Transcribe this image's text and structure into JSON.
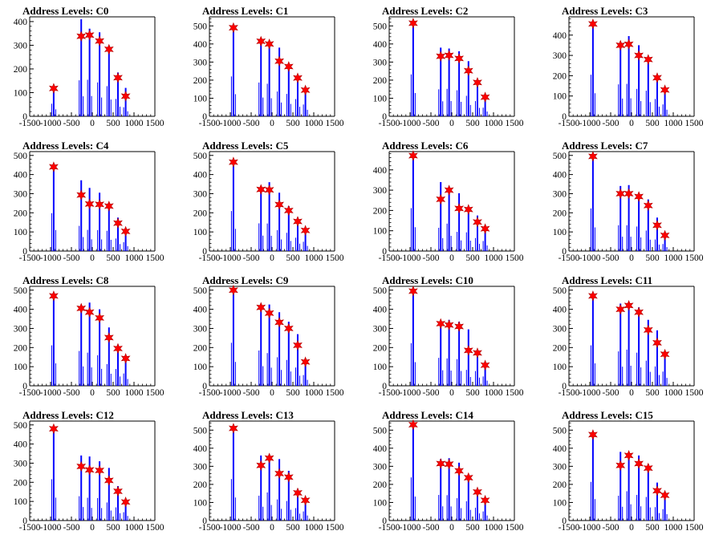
{
  "colors": {
    "histogram": "#0000ff",
    "marker": "#ff0000",
    "marker_edge": "#b00000",
    "axis": "#000000"
  },
  "x_ticks": [
    "-1500",
    "-1000",
    "-500",
    "0",
    "500",
    "1000",
    "1500"
  ],
  "chart_data": [
    {
      "type": "bar",
      "title": "Address Levels: C0",
      "ylim": [
        0,
        420
      ],
      "yticks": [
        0,
        100,
        200,
        300,
        400
      ],
      "xlim": [
        -1500,
        1500
      ],
      "levels": [
        {
          "x": -925,
          "y": 118
        },
        {
          "x": -265,
          "y": 338
        },
        {
          "x": -65,
          "y": 343
        },
        {
          "x": 175,
          "y": 318
        },
        {
          "x": 400,
          "y": 283
        },
        {
          "x": 615,
          "y": 163
        },
        {
          "x": 800,
          "y": 85
        }
      ],
      "bars": [
        {
          "x": -925,
          "y": 125
        },
        {
          "x": -265,
          "y": 410
        },
        {
          "x": -65,
          "y": 370
        },
        {
          "x": 175,
          "y": 355
        },
        {
          "x": 400,
          "y": 290
        },
        {
          "x": 615,
          "y": 185
        },
        {
          "x": 800,
          "y": 120
        }
      ]
    },
    {
      "type": "bar",
      "title": "Address Levels: C1",
      "ylim": [
        0,
        550
      ],
      "yticks": [
        0,
        100,
        200,
        300,
        400,
        500
      ],
      "xlim": [
        -1500,
        1500
      ],
      "levels": [
        {
          "x": -925,
          "y": 490
        },
        {
          "x": -265,
          "y": 415
        },
        {
          "x": -65,
          "y": 400
        },
        {
          "x": 175,
          "y": 305
        },
        {
          "x": 400,
          "y": 275
        },
        {
          "x": 615,
          "y": 212
        },
        {
          "x": 800,
          "y": 145
        }
      ],
      "bars": [
        {
          "x": -925,
          "y": 510
        },
        {
          "x": -265,
          "y": 425
        },
        {
          "x": -65,
          "y": 410
        },
        {
          "x": 175,
          "y": 380
        },
        {
          "x": 400,
          "y": 290
        },
        {
          "x": 615,
          "y": 225
        },
        {
          "x": 800,
          "y": 150
        }
      ]
    },
    {
      "type": "bar",
      "title": "Address Levels: C2",
      "ylim": [
        0,
        550
      ],
      "yticks": [
        0,
        100,
        200,
        300,
        400,
        500
      ],
      "xlim": [
        -1500,
        1500
      ],
      "levels": [
        {
          "x": -925,
          "y": 515
        },
        {
          "x": -265,
          "y": 332
        },
        {
          "x": -65,
          "y": 337
        },
        {
          "x": 175,
          "y": 320
        },
        {
          "x": 400,
          "y": 252
        },
        {
          "x": 615,
          "y": 187
        },
        {
          "x": 800,
          "y": 106
        }
      ],
      "bars": [
        {
          "x": -925,
          "y": 520
        },
        {
          "x": -265,
          "y": 380
        },
        {
          "x": -65,
          "y": 375
        },
        {
          "x": 175,
          "y": 360
        },
        {
          "x": 400,
          "y": 305
        },
        {
          "x": 615,
          "y": 195
        },
        {
          "x": 800,
          "y": 110
        }
      ]
    },
    {
      "type": "bar",
      "title": "Address Levels: C3",
      "ylim": [
        0,
        490
      ],
      "yticks": [
        0,
        100,
        200,
        300,
        400
      ],
      "xlim": [
        -1500,
        1500
      ],
      "levels": [
        {
          "x": -925,
          "y": 455
        },
        {
          "x": -265,
          "y": 350
        },
        {
          "x": -65,
          "y": 355
        },
        {
          "x": 175,
          "y": 300
        },
        {
          "x": 400,
          "y": 280
        },
        {
          "x": 615,
          "y": 190
        },
        {
          "x": 800,
          "y": 130
        }
      ],
      "bars": [
        {
          "x": -925,
          "y": 460
        },
        {
          "x": -265,
          "y": 355
        },
        {
          "x": -65,
          "y": 395
        },
        {
          "x": 175,
          "y": 350
        },
        {
          "x": 400,
          "y": 290
        },
        {
          "x": 615,
          "y": 200
        },
        {
          "x": 800,
          "y": 135
        }
      ]
    },
    {
      "type": "bar",
      "title": "Address Levels: C4",
      "ylim": [
        0,
        520
      ],
      "yticks": [
        0,
        100,
        200,
        300,
        400,
        500
      ],
      "xlim": [
        -1500,
        1500
      ],
      "levels": [
        {
          "x": -925,
          "y": 440
        },
        {
          "x": -265,
          "y": 293
        },
        {
          "x": -65,
          "y": 246
        },
        {
          "x": 175,
          "y": 244
        },
        {
          "x": 400,
          "y": 235
        },
        {
          "x": 615,
          "y": 146
        },
        {
          "x": 800,
          "y": 103
        }
      ],
      "bars": [
        {
          "x": -925,
          "y": 450
        },
        {
          "x": -265,
          "y": 370
        },
        {
          "x": -65,
          "y": 330
        },
        {
          "x": 175,
          "y": 305
        },
        {
          "x": 400,
          "y": 250
        },
        {
          "x": 615,
          "y": 175
        },
        {
          "x": 800,
          "y": 110
        }
      ]
    },
    {
      "type": "bar",
      "title": "Address Levels: C5",
      "ylim": [
        0,
        520
      ],
      "yticks": [
        0,
        100,
        200,
        300,
        400,
        500
      ],
      "xlim": [
        -1500,
        1500
      ],
      "levels": [
        {
          "x": -925,
          "y": 465
        },
        {
          "x": -265,
          "y": 322
        },
        {
          "x": -65,
          "y": 320
        },
        {
          "x": 175,
          "y": 243
        },
        {
          "x": 400,
          "y": 212
        },
        {
          "x": 615,
          "y": 155
        },
        {
          "x": 800,
          "y": 108
        }
      ],
      "bars": [
        {
          "x": -925,
          "y": 470
        },
        {
          "x": -265,
          "y": 330
        },
        {
          "x": -65,
          "y": 360
        },
        {
          "x": 175,
          "y": 305
        },
        {
          "x": 400,
          "y": 235
        },
        {
          "x": 615,
          "y": 175
        },
        {
          "x": 800,
          "y": 115
        }
      ]
    },
    {
      "type": "bar",
      "title": "Address Levels: C6",
      "ylim": [
        0,
        490
      ],
      "yticks": [
        0,
        100,
        200,
        300,
        400
      ],
      "xlim": [
        -1500,
        1500
      ],
      "levels": [
        {
          "x": -925,
          "y": 470
        },
        {
          "x": -265,
          "y": 255
        },
        {
          "x": -65,
          "y": 300
        },
        {
          "x": 175,
          "y": 210
        },
        {
          "x": 400,
          "y": 205
        },
        {
          "x": 615,
          "y": 143
        },
        {
          "x": 800,
          "y": 110
        }
      ],
      "bars": [
        {
          "x": -925,
          "y": 475
        },
        {
          "x": -265,
          "y": 340
        },
        {
          "x": -65,
          "y": 305
        },
        {
          "x": 175,
          "y": 285
        },
        {
          "x": 400,
          "y": 220
        },
        {
          "x": 615,
          "y": 175
        },
        {
          "x": 800,
          "y": 115
        }
      ]
    },
    {
      "type": "bar",
      "title": "Address Levels: C7",
      "ylim": [
        0,
        520
      ],
      "yticks": [
        0,
        100,
        200,
        300,
        400,
        500
      ],
      "xlim": [
        -1500,
        1500
      ],
      "levels": [
        {
          "x": -925,
          "y": 495
        },
        {
          "x": -265,
          "y": 300
        },
        {
          "x": -65,
          "y": 300
        },
        {
          "x": 175,
          "y": 285
        },
        {
          "x": 400,
          "y": 238
        },
        {
          "x": 615,
          "y": 135
        },
        {
          "x": 800,
          "y": 82
        }
      ],
      "bars": [
        {
          "x": -925,
          "y": 500
        },
        {
          "x": -265,
          "y": 340
        },
        {
          "x": -65,
          "y": 345
        },
        {
          "x": 175,
          "y": 290
        },
        {
          "x": 400,
          "y": 270
        },
        {
          "x": 615,
          "y": 175
        },
        {
          "x": 800,
          "y": 90
        }
      ]
    },
    {
      "type": "bar",
      "title": "Address Levels: C8",
      "ylim": [
        0,
        520
      ],
      "yticks": [
        0,
        100,
        200,
        300,
        400,
        500
      ],
      "xlim": [
        -1500,
        1500
      ],
      "levels": [
        {
          "x": -925,
          "y": 470
        },
        {
          "x": -265,
          "y": 405
        },
        {
          "x": -65,
          "y": 385
        },
        {
          "x": 175,
          "y": 355
        },
        {
          "x": 400,
          "y": 252
        },
        {
          "x": 615,
          "y": 195
        },
        {
          "x": 800,
          "y": 143
        }
      ],
      "bars": [
        {
          "x": -925,
          "y": 480
        },
        {
          "x": -265,
          "y": 420
        },
        {
          "x": -65,
          "y": 435
        },
        {
          "x": 175,
          "y": 400
        },
        {
          "x": 400,
          "y": 305
        },
        {
          "x": 615,
          "y": 215
        },
        {
          "x": 800,
          "y": 150
        }
      ]
    },
    {
      "type": "bar",
      "title": "Address Levels: C9",
      "ylim": [
        0,
        520
      ],
      "yticks": [
        0,
        100,
        200,
        300,
        400,
        500
      ],
      "xlim": [
        -1500,
        1500
      ],
      "levels": [
        {
          "x": -925,
          "y": 500
        },
        {
          "x": -265,
          "y": 410
        },
        {
          "x": -65,
          "y": 380
        },
        {
          "x": 175,
          "y": 332
        },
        {
          "x": 400,
          "y": 300
        },
        {
          "x": 615,
          "y": 212
        },
        {
          "x": 800,
          "y": 125
        }
      ],
      "bars": [
        {
          "x": -925,
          "y": 505
        },
        {
          "x": -265,
          "y": 415
        },
        {
          "x": -65,
          "y": 425
        },
        {
          "x": 175,
          "y": 385
        },
        {
          "x": 400,
          "y": 335
        },
        {
          "x": 615,
          "y": 270
        },
        {
          "x": 800,
          "y": 130
        }
      ]
    },
    {
      "type": "bar",
      "title": "Address Levels: C10",
      "ylim": [
        0,
        520
      ],
      "yticks": [
        0,
        100,
        200,
        300,
        400,
        500
      ],
      "xlim": [
        -1500,
        1500
      ],
      "levels": [
        {
          "x": -925,
          "y": 495
        },
        {
          "x": -265,
          "y": 325
        },
        {
          "x": -65,
          "y": 318
        },
        {
          "x": 175,
          "y": 310
        },
        {
          "x": 400,
          "y": 185
        },
        {
          "x": 615,
          "y": 172
        },
        {
          "x": 800,
          "y": 108
        }
      ],
      "bars": [
        {
          "x": -925,
          "y": 500
        },
        {
          "x": -265,
          "y": 330
        },
        {
          "x": -65,
          "y": 345
        },
        {
          "x": 175,
          "y": 335
        },
        {
          "x": 400,
          "y": 295
        },
        {
          "x": 615,
          "y": 180
        },
        {
          "x": 800,
          "y": 115
        }
      ]
    },
    {
      "type": "bar",
      "title": "Address Levels: C11",
      "ylim": [
        0,
        520
      ],
      "yticks": [
        0,
        100,
        200,
        300,
        400,
        500
      ],
      "xlim": [
        -1500,
        1500
      ],
      "levels": [
        {
          "x": -925,
          "y": 470
        },
        {
          "x": -265,
          "y": 400
        },
        {
          "x": -65,
          "y": 420
        },
        {
          "x": 175,
          "y": 385
        },
        {
          "x": 400,
          "y": 292
        },
        {
          "x": 615,
          "y": 225
        },
        {
          "x": 800,
          "y": 165
        }
      ],
      "bars": [
        {
          "x": -925,
          "y": 475
        },
        {
          "x": -265,
          "y": 430
        },
        {
          "x": -65,
          "y": 425
        },
        {
          "x": 175,
          "y": 410
        },
        {
          "x": 400,
          "y": 345
        },
        {
          "x": 615,
          "y": 290
        },
        {
          "x": 800,
          "y": 170
        }
      ]
    },
    {
      "type": "bar",
      "title": "Address Levels: C12",
      "ylim": [
        0,
        520
      ],
      "yticks": [
        0,
        100,
        200,
        300,
        400,
        500
      ],
      "xlim": [
        -1500,
        1500
      ],
      "levels": [
        {
          "x": -925,
          "y": 480
        },
        {
          "x": -265,
          "y": 283
        },
        {
          "x": -65,
          "y": 265
        },
        {
          "x": 175,
          "y": 262
        },
        {
          "x": 400,
          "y": 210
        },
        {
          "x": 615,
          "y": 153
        },
        {
          "x": 800,
          "y": 97
        }
      ],
      "bars": [
        {
          "x": -925,
          "y": 485
        },
        {
          "x": -265,
          "y": 340
        },
        {
          "x": -65,
          "y": 335
        },
        {
          "x": 175,
          "y": 310
        },
        {
          "x": 400,
          "y": 275
        },
        {
          "x": 615,
          "y": 180
        },
        {
          "x": 800,
          "y": 105
        }
      ]
    },
    {
      "type": "bar",
      "title": "Address Levels: C13",
      "ylim": [
        0,
        550
      ],
      "yticks": [
        0,
        100,
        200,
        300,
        400,
        500
      ],
      "xlim": [
        -1500,
        1500
      ],
      "levels": [
        {
          "x": -925,
          "y": 510
        },
        {
          "x": -265,
          "y": 305
        },
        {
          "x": -65,
          "y": 345
        },
        {
          "x": 175,
          "y": 260
        },
        {
          "x": 400,
          "y": 240
        },
        {
          "x": 615,
          "y": 153
        },
        {
          "x": 800,
          "y": 112
        }
      ],
      "bars": [
        {
          "x": -925,
          "y": 520
        },
        {
          "x": -265,
          "y": 360
        },
        {
          "x": -65,
          "y": 355
        },
        {
          "x": 175,
          "y": 340
        },
        {
          "x": 400,
          "y": 275
        },
        {
          "x": 615,
          "y": 175
        },
        {
          "x": 800,
          "y": 120
        }
      ]
    },
    {
      "type": "bar",
      "title": "Address Levels: C14",
      "ylim": [
        0,
        550
      ],
      "yticks": [
        0,
        100,
        200,
        300,
        400,
        500
      ],
      "xlim": [
        -1500,
        1500
      ],
      "levels": [
        {
          "x": -925,
          "y": 530
        },
        {
          "x": -265,
          "y": 315
        },
        {
          "x": -65,
          "y": 312
        },
        {
          "x": 175,
          "y": 275
        },
        {
          "x": 400,
          "y": 237
        },
        {
          "x": 615,
          "y": 158
        },
        {
          "x": 800,
          "y": 112
        }
      ],
      "bars": [
        {
          "x": -925,
          "y": 540
        },
        {
          "x": -265,
          "y": 340
        },
        {
          "x": -65,
          "y": 345
        },
        {
          "x": 175,
          "y": 320
        },
        {
          "x": 400,
          "y": 255
        },
        {
          "x": 615,
          "y": 175
        },
        {
          "x": 800,
          "y": 120
        }
      ]
    },
    {
      "type": "bar",
      "title": "Address Levels: C15",
      "ylim": [
        0,
        550
      ],
      "yticks": [
        0,
        100,
        200,
        300,
        400,
        500
      ],
      "xlim": [
        -1500,
        1500
      ],
      "levels": [
        {
          "x": -925,
          "y": 475
        },
        {
          "x": -265,
          "y": 305
        },
        {
          "x": -65,
          "y": 360
        },
        {
          "x": 175,
          "y": 315
        },
        {
          "x": 400,
          "y": 290
        },
        {
          "x": 615,
          "y": 165
        },
        {
          "x": 800,
          "y": 140
        }
      ],
      "bars": [
        {
          "x": -925,
          "y": 480
        },
        {
          "x": -265,
          "y": 380
        },
        {
          "x": -65,
          "y": 375
        },
        {
          "x": 175,
          "y": 360
        },
        {
          "x": 400,
          "y": 310
        },
        {
          "x": 615,
          "y": 210
        },
        {
          "x": 800,
          "y": 145
        }
      ]
    }
  ]
}
